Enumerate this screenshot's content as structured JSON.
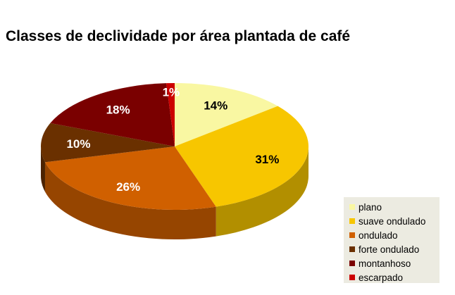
{
  "chart_data": {
    "type": "pie",
    "title": "Classes de declividade por área plantada de café",
    "categories": [
      "plano",
      "suave ondulado",
      "ondulado",
      "forte ondulado",
      "montanhoso",
      "escarpado"
    ],
    "values": [
      14,
      31,
      26,
      10,
      18,
      1
    ],
    "value_labels": [
      "14%",
      "31%",
      "26%",
      "10%",
      "18%",
      "1%"
    ],
    "colors": [
      "#f9f7a2",
      "#f7c600",
      "#d06000",
      "#6a3000",
      "#7a0000",
      "#cc0000"
    ],
    "label_colors": [
      "#000000",
      "#000000",
      "#ffffff",
      "#ffffff",
      "#ffffff",
      "#ffffff"
    ],
    "legend_position": "bottom-right",
    "style": "3d"
  }
}
